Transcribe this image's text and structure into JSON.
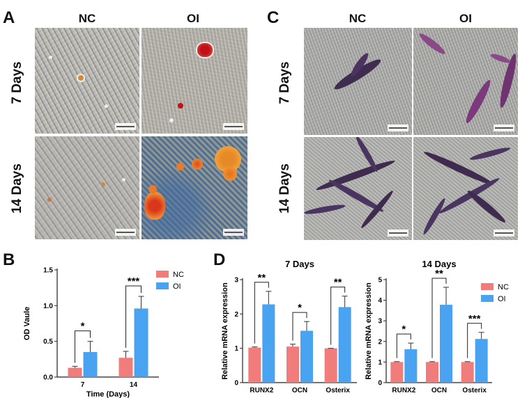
{
  "panels": {
    "A": {
      "label": "A",
      "columns": [
        "NC",
        "OI"
      ],
      "rows": [
        "7 Days",
        "14 Days"
      ]
    },
    "C": {
      "label": "C",
      "columns": [
        "NC",
        "OI"
      ],
      "rows": [
        "7 Days",
        "14 Days"
      ]
    },
    "B": {
      "label": "B"
    },
    "D": {
      "label": "D"
    }
  },
  "colors": {
    "nc": "#f07c7c",
    "oi": "#4aa3f0"
  },
  "chart_data": [
    {
      "id": "B",
      "type": "bar",
      "title": "",
      "xlabel": "Time (Days)",
      "ylabel": "OD Vaule",
      "categories": [
        "7",
        "14"
      ],
      "ylim": [
        0,
        1.5
      ],
      "yticks": [
        "0.0",
        "0.5",
        "1.0",
        "1.5"
      ],
      "series": [
        {
          "name": "NC",
          "values": [
            0.13,
            0.27
          ],
          "errors": [
            0.02,
            0.09
          ]
        },
        {
          "name": "OI",
          "values": [
            0.35,
            0.96
          ],
          "errors": [
            0.15,
            0.17
          ]
        }
      ],
      "significance": [
        "*",
        "***"
      ],
      "legend": "top-right"
    },
    {
      "id": "D1",
      "type": "bar",
      "title": "7 Days",
      "xlabel": "",
      "ylabel": "Relative mRNA expression",
      "categories": [
        "RUNX2",
        "OCN",
        "Osterix"
      ],
      "ylim": [
        0,
        3
      ],
      "yticks": [
        "0",
        "1",
        "2",
        "3"
      ],
      "series": [
        {
          "name": "NC",
          "values": [
            1.02,
            1.05,
            1.0
          ],
          "errors": [
            0.02,
            0.07,
            0.0
          ]
        },
        {
          "name": "OI",
          "values": [
            2.28,
            1.51,
            2.2
          ],
          "errors": [
            0.38,
            0.27,
            0.32
          ]
        }
      ],
      "significance": [
        "**",
        "*",
        "**"
      ]
    },
    {
      "id": "D2",
      "type": "bar",
      "title": "14 Days",
      "xlabel": "",
      "ylabel": "Relative mRNA expression",
      "categories": [
        "RUNX2",
        "OCN",
        "Osterix"
      ],
      "ylim": [
        0,
        5
      ],
      "yticks": [
        "0",
        "1",
        "2",
        "3",
        "4",
        "5"
      ],
      "series": [
        {
          "name": "NC",
          "values": [
            1.0,
            1.0,
            1.0
          ],
          "errors": [
            0.02,
            0.02,
            0.02
          ]
        },
        {
          "name": "OI",
          "values": [
            1.62,
            3.78,
            2.12
          ],
          "errors": [
            0.3,
            0.85,
            0.32
          ]
        }
      ],
      "significance": [
        "*",
        "**",
        "***"
      ],
      "legend": "top-right"
    }
  ]
}
